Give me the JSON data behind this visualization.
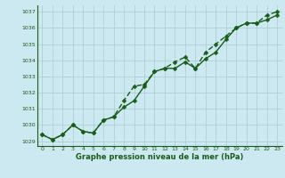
{
  "x": [
    0,
    1,
    2,
    3,
    4,
    5,
    6,
    7,
    8,
    9,
    10,
    11,
    12,
    13,
    14,
    15,
    16,
    17,
    18,
    19,
    20,
    21,
    22,
    23
  ],
  "line1": [
    1029.4,
    1029.1,
    1029.4,
    1030.0,
    1029.6,
    1029.5,
    1030.3,
    1030.5,
    1031.1,
    1031.5,
    1032.4,
    1033.3,
    1033.5,
    1033.5,
    1033.9,
    1033.5,
    1034.1,
    1034.5,
    1035.3,
    1036.0,
    1036.3,
    1036.3,
    1036.5,
    1036.8
  ],
  "line2": [
    1029.4,
    1029.1,
    1029.4,
    1030.0,
    1029.6,
    1029.5,
    1030.3,
    1030.5,
    1031.5,
    1032.4,
    1032.5,
    1033.3,
    1033.5,
    1033.9,
    1034.2,
    1033.5,
    1034.5,
    1035.0,
    1035.5,
    1036.0,
    1036.3,
    1036.3,
    1036.8,
    1037.0
  ],
  "ylim": [
    1028.7,
    1037.4
  ],
  "yticks": [
    1029,
    1030,
    1031,
    1032,
    1033,
    1034,
    1035,
    1036,
    1037
  ],
  "xtick_labels": [
    "0",
    "1",
    "2",
    "3",
    "4",
    "5",
    "6",
    "7",
    "8",
    "9",
    "10",
    "11",
    "12",
    "13",
    "14",
    "15",
    "16",
    "17",
    "18",
    "19",
    "20",
    "21",
    "22",
    "23"
  ],
  "xlabel": "Graphe pression niveau de la mer (hPa)",
  "line_color": "#1a5c1a",
  "bg_color": "#cce8f0",
  "grid_color": "#a8cccc",
  "marker_size": 2.5,
  "line_width": 1.0
}
